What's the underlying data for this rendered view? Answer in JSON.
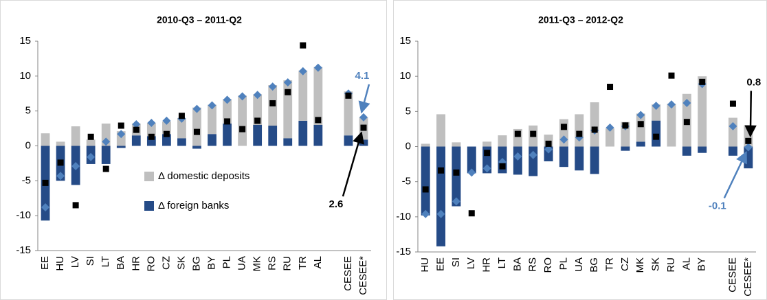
{
  "chart_data": [
    {
      "type": "bar",
      "title": "2010-Q3 – 2011-Q2",
      "categories": [
        "EE",
        "HU",
        "LV",
        "SI",
        "LT",
        "BA",
        "HR",
        "RO",
        "CZ",
        "SK",
        "BG",
        "BY",
        "PL",
        "UA",
        "MK",
        "RS",
        "RU",
        "TR",
        "AL",
        null,
        "CESEE",
        "CESEE*"
      ],
      "series": [
        {
          "name": "Δ domestic deposits",
          "color": "#bfbfbf",
          "values": [
            1.8,
            0.6,
            2.8,
            0.9,
            3.2,
            2.1,
            1.7,
            1.9,
            1.8,
            2.9,
            5.5,
            4.2,
            3.5,
            7.2,
            4.4,
            5.8,
            8.3,
            7.2,
            8.3,
            null,
            6.3,
            3.2
          ]
        },
        {
          "name": "Δ foreign banks",
          "color": "#254b87",
          "values": [
            -10.7,
            -5.0,
            -5.6,
            -2.6,
            -2.6,
            -0.3,
            1.5,
            1.4,
            1.7,
            1.1,
            -0.4,
            1.7,
            3.2,
            0,
            3.0,
            2.9,
            1.1,
            3.6,
            3.0,
            null,
            1.5,
            0.9
          ]
        },
        {
          "color": "#4f81bd",
          "marker": "diamond",
          "values": [
            -8.8,
            -4.3,
            -2.9,
            -1.6,
            0.6,
            1.7,
            3.1,
            3.3,
            3.6,
            3.9,
            5.3,
            5.8,
            6.6,
            7.1,
            7.3,
            8.5,
            9.1,
            10.7,
            11.2,
            null,
            7.5,
            4.1
          ],
          "value_labels": [
            null,
            null,
            null,
            null,
            null,
            null,
            null,
            null,
            null,
            null,
            null,
            null,
            null,
            null,
            null,
            null,
            null,
            null,
            null,
            null,
            null,
            "4.1"
          ]
        },
        {
          "color": "#000000",
          "marker": "square",
          "values": [
            -5.3,
            -2.4,
            -8.5,
            1.3,
            -3.3,
            2.9,
            2.3,
            1.3,
            1.7,
            4.3,
            2.0,
            null,
            3.5,
            2.4,
            3.6,
            6.1,
            7.7,
            14.4,
            3.7,
            null,
            7.2,
            2.6
          ],
          "value_labels": [
            null,
            null,
            null,
            null,
            null,
            null,
            null,
            null,
            null,
            null,
            null,
            null,
            null,
            null,
            null,
            null,
            null,
            null,
            null,
            null,
            null,
            "2.6"
          ]
        }
      ],
      "ylim": [
        -15,
        15
      ],
      "yticks": [
        -15,
        -10,
        -5,
        0,
        5,
        10,
        15
      ]
    },
    {
      "type": "bar",
      "title": "2011-Q3 – 2012-Q2",
      "categories": [
        "HU",
        "EE",
        "SI",
        "LV",
        "HR",
        "LT",
        "BA",
        "RS",
        "RO",
        "PL",
        "UA",
        "BG",
        "TR",
        "CZ",
        "MK",
        "SK",
        "RU",
        "AL",
        "BY",
        null,
        "CESEE",
        "CESEE*"
      ],
      "series": [
        {
          "color": "#bfbfbf",
          "values": [
            0.4,
            4.6,
            0.6,
            0,
            0.7,
            1.6,
            2.5,
            3.0,
            1.7,
            3.9,
            4.6,
            6.3,
            2.6,
            3.5,
            4.0,
            2.3,
            6.1,
            7.5,
            10.0,
            null,
            4.1,
            3.0
          ]
        },
        {
          "color": "#254b87",
          "values": [
            -9.8,
            -14.2,
            -8.5,
            -3.8,
            -3.8,
            -3.8,
            -4.0,
            -4.2,
            -2.1,
            -2.9,
            -3.4,
            -3.9,
            0,
            -0.6,
            0.7,
            3.7,
            0,
            -1.3,
            -0.9,
            null,
            -1.3,
            -3.1
          ]
        },
        {
          "color": "#4f81bd",
          "marker": "diamond",
          "values": [
            -9.6,
            -9.6,
            -7.8,
            -3.7,
            -3.1,
            -2.2,
            -1.4,
            -1.2,
            -0.4,
            1.0,
            1.3,
            2.3,
            2.7,
            2.9,
            4.5,
            5.8,
            6.0,
            6.2,
            8.9,
            null,
            2.9,
            -0.1
          ],
          "value_labels": [
            null,
            null,
            null,
            null,
            null,
            null,
            null,
            null,
            null,
            null,
            null,
            null,
            null,
            null,
            null,
            null,
            null,
            null,
            null,
            null,
            null,
            "-0.1"
          ]
        },
        {
          "color": "#000000",
          "marker": "square",
          "values": [
            -6.1,
            -3.4,
            -3.7,
            -9.5,
            -0.9,
            -2.8,
            1.8,
            1.8,
            0.4,
            2.8,
            1.8,
            2.4,
            8.5,
            3.0,
            3.2,
            1.4,
            10.1,
            3.5,
            9.2,
            null,
            6.1,
            0.8
          ],
          "value_labels": [
            null,
            null,
            null,
            null,
            null,
            null,
            null,
            null,
            null,
            null,
            null,
            null,
            null,
            null,
            null,
            null,
            null,
            null,
            null,
            null,
            null,
            "0.8"
          ]
        }
      ],
      "ylim": [
        -15,
        15
      ],
      "yticks": [
        -15,
        -10,
        -5,
        0,
        5,
        10,
        15
      ]
    }
  ]
}
